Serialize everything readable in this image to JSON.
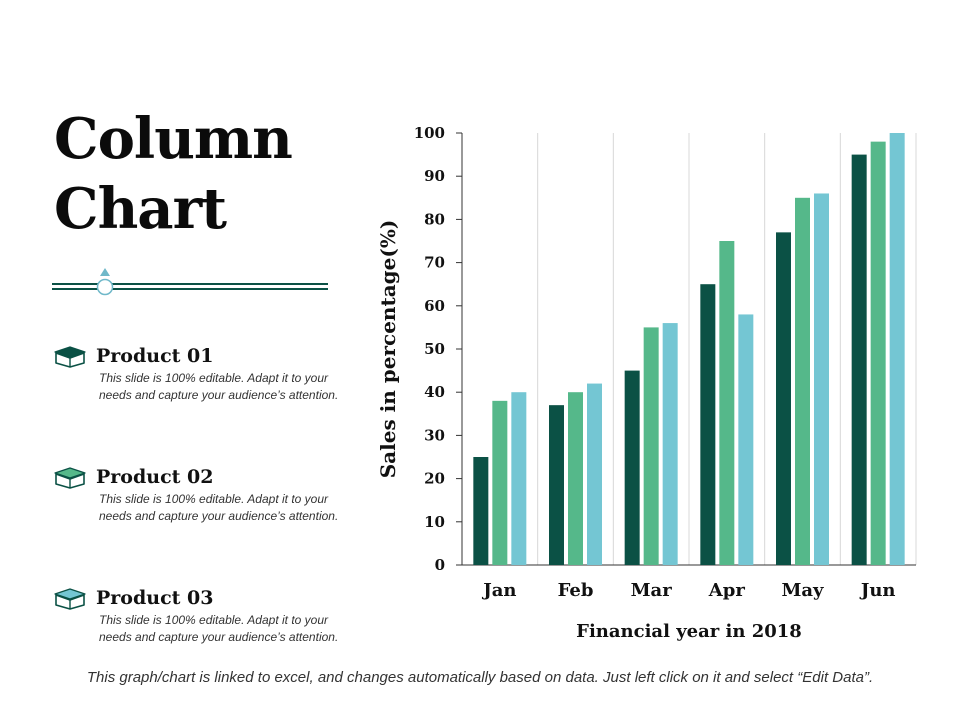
{
  "slide": {
    "title_line1": "Column",
    "title_line2": "Chart",
    "footer": "This graph/chart is linked to excel, and changes automatically based on data. Just left click on it and select “Edit Data”."
  },
  "products": [
    {
      "name": "Product 01",
      "line1": "This slide is 100% editable. Adapt it to your",
      "line2": "needs and capture your audience’s attention."
    },
    {
      "name": "Product 02",
      "line1": "This slide is 100% editable. Adapt it to your",
      "line2": "needs and capture your audience’s attention."
    },
    {
      "name": "Product 03",
      "line1": "This slide is 100% editable. Adapt it to your",
      "line2": "needs and capture your audience’s attention."
    }
  ],
  "icons": {
    "product": "box-icon",
    "divider": "triangle-marker-icon"
  },
  "colors": {
    "series1": "#0b5145",
    "series2": "#55b88a",
    "series3": "#74c6d3",
    "gridline": "#d8d8d8",
    "axis": "#333333"
  },
  "chart_data": {
    "type": "bar",
    "categories": [
      "Jan",
      "Feb",
      "Mar",
      "Apr",
      "May",
      "Jun"
    ],
    "series": [
      {
        "values": [
          25,
          37,
          45,
          65,
          77,
          95
        ]
      },
      {
        "values": [
          38,
          40,
          55,
          75,
          85,
          98
        ]
      },
      {
        "values": [
          40,
          42,
          56,
          58,
          86,
          100
        ]
      }
    ],
    "xlabel": "Financial year in 2018",
    "ylabel": "Sales in percentage(%)",
    "ylim": [
      0,
      100
    ],
    "yticks": [
      0,
      10,
      20,
      30,
      40,
      50,
      60,
      70,
      80,
      90,
      100
    ],
    "grid": "vertical category separators",
    "legend": "none"
  }
}
